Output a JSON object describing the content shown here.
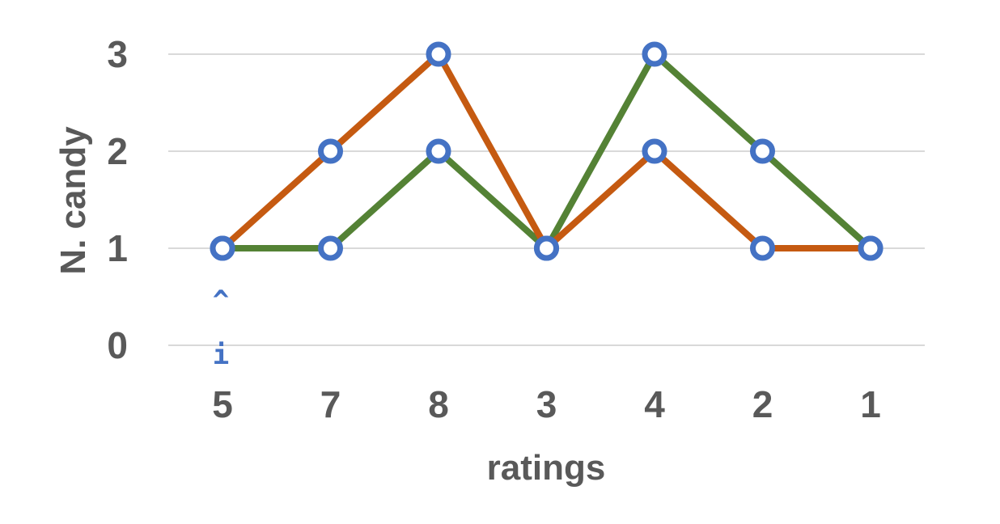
{
  "chart_data": {
    "type": "line",
    "categories": [
      "5",
      "7",
      "8",
      "3",
      "4",
      "2",
      "1"
    ],
    "series": [
      {
        "values": [
          1,
          2,
          3,
          1,
          2,
          1,
          1
        ],
        "color": "#C55A11"
      },
      {
        "values": [
          1,
          1,
          2,
          1,
          3,
          2,
          1
        ],
        "color": "#548235"
      }
    ],
    "xlabel": "ratings",
    "ylabel": "N. candy",
    "ylim": [
      0,
      3
    ],
    "yticks": [
      "0",
      "1",
      "2",
      "3"
    ],
    "grid": true,
    "marker_color": "#4472C4",
    "gridline_color": "#D9D9D9",
    "text_color": "#595959",
    "annotation": {
      "caret": "^",
      "letter": "i"
    }
  }
}
